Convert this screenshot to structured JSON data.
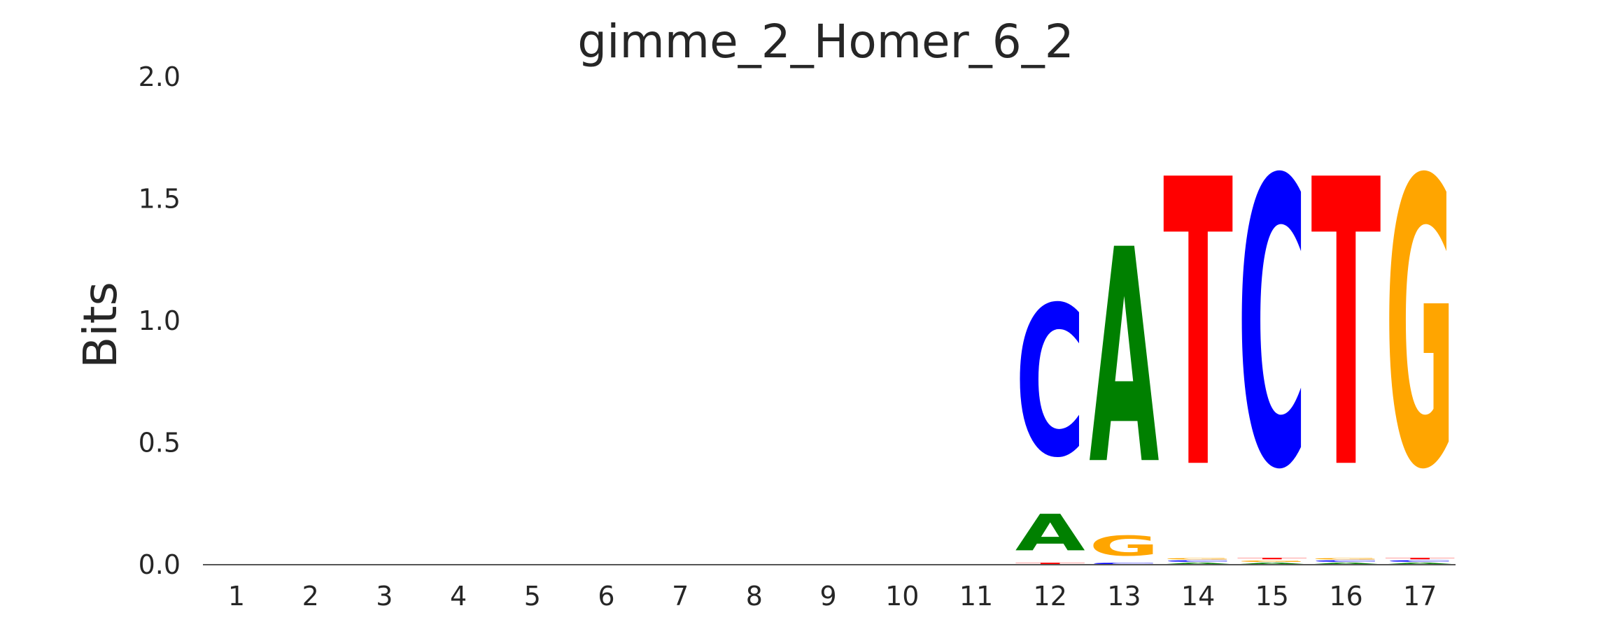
{
  "chart_data": {
    "type": "sequence-logo",
    "title": "gimme_2_Homer_6_2",
    "ylabel": "Bits",
    "xlabel": "",
    "ylim": [
      0,
      2
    ],
    "yticks": [
      "0.0",
      "0.5",
      "1.0",
      "1.5",
      "2.0"
    ],
    "ytick_values": [
      0,
      0.5,
      1.0,
      1.5,
      2.0
    ],
    "positions": [
      "1",
      "2",
      "3",
      "4",
      "5",
      "6",
      "7",
      "8",
      "9",
      "10",
      "11",
      "12",
      "13",
      "14",
      "15",
      "16",
      "17"
    ],
    "grid": false,
    "colors": {
      "A": "#008000",
      "C": "#0000ff",
      "G": "#ffa500",
      "T": "#ff0000"
    },
    "columns": [
      {
        "position": "1",
        "stack": []
      },
      {
        "position": "2",
        "stack": []
      },
      {
        "position": "3",
        "stack": []
      },
      {
        "position": "4",
        "stack": []
      },
      {
        "position": "5",
        "stack": []
      },
      {
        "position": "6",
        "stack": []
      },
      {
        "position": "7",
        "stack": []
      },
      {
        "position": "8",
        "stack": []
      },
      {
        "position": "9",
        "stack": []
      },
      {
        "position": "10",
        "stack": []
      },
      {
        "position": "11",
        "stack": []
      },
      {
        "position": "12",
        "stack": [
          {
            "letter": "T",
            "bits": 0.01
          },
          {
            "letter": "A",
            "bits": 0.24
          },
          {
            "letter": "C",
            "bits": 0.99
          }
        ]
      },
      {
        "position": "13",
        "stack": [
          {
            "letter": "C",
            "bits": 0.01
          },
          {
            "letter": "G",
            "bits": 0.13
          },
          {
            "letter": "A",
            "bits": 1.41
          }
        ]
      },
      {
        "position": "14",
        "stack": [
          {
            "letter": "A",
            "bits": 0.01
          },
          {
            "letter": "C",
            "bits": 0.01
          },
          {
            "letter": "G",
            "bits": 0.01
          },
          {
            "letter": "T",
            "bits": 1.89
          }
        ]
      },
      {
        "position": "15",
        "stack": [
          {
            "letter": "A",
            "bits": 0.01
          },
          {
            "letter": "G",
            "bits": 0.01
          },
          {
            "letter": "T",
            "bits": 0.01
          },
          {
            "letter": "C",
            "bits": 1.89
          }
        ]
      },
      {
        "position": "16",
        "stack": [
          {
            "letter": "A",
            "bits": 0.01
          },
          {
            "letter": "C",
            "bits": 0.01
          },
          {
            "letter": "G",
            "bits": 0.01
          },
          {
            "letter": "T",
            "bits": 1.89
          }
        ]
      },
      {
        "position": "17",
        "stack": [
          {
            "letter": "A",
            "bits": 0.01
          },
          {
            "letter": "C",
            "bits": 0.01
          },
          {
            "letter": "T",
            "bits": 0.01
          },
          {
            "letter": "G",
            "bits": 1.89
          }
        ]
      }
    ]
  }
}
